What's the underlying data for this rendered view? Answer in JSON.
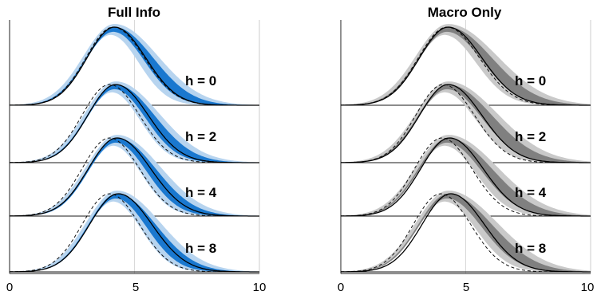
{
  "chart_data": [
    {
      "type": "area",
      "title": "Full Info",
      "xlim": [
        0,
        10
      ],
      "x_ticks": [
        "0",
        "5",
        "10"
      ],
      "grid": "vertical line at x = 5",
      "band_color": "#1a78cf",
      "band_outer_color": "#b7d4ef",
      "rows": [
        {
          "label": "h = 0",
          "band_mean": 4.2,
          "band_left_sd": 1.15,
          "band_right_sd": 1.55,
          "solid_mean": 4.2,
          "solid_left_sd": 1.1,
          "solid_right_sd": 1.25,
          "dashed_mean": 4.15,
          "dashed_left_sd": 1.1,
          "dashed_right_sd": 1.25
        },
        {
          "label": "h = 2",
          "band_mean": 4.25,
          "band_left_sd": 1.15,
          "band_right_sd": 1.55,
          "solid_mean": 4.25,
          "solid_left_sd": 1.12,
          "solid_right_sd": 1.3,
          "dashed_mean": 4.0,
          "dashed_left_sd": 1.1,
          "dashed_right_sd": 1.2
        },
        {
          "label": "h = 4",
          "band_mean": 4.3,
          "band_left_sd": 1.15,
          "band_right_sd": 1.55,
          "solid_mean": 4.3,
          "solid_left_sd": 1.15,
          "solid_right_sd": 1.35,
          "dashed_mean": 4.0,
          "dashed_left_sd": 1.1,
          "dashed_right_sd": 1.2
        },
        {
          "label": "h = 8",
          "band_mean": 4.3,
          "band_left_sd": 1.15,
          "band_right_sd": 1.55,
          "solid_mean": 4.35,
          "solid_left_sd": 1.15,
          "solid_right_sd": 1.35,
          "dashed_mean": 4.0,
          "dashed_left_sd": 1.1,
          "dashed_right_sd": 1.2
        }
      ]
    },
    {
      "type": "area",
      "title": "Macro Only",
      "xlim": [
        0,
        10
      ],
      "x_ticks": [
        "0",
        "5",
        "10"
      ],
      "grid": "vertical line at x = 5",
      "band_color": "#808080",
      "band_outer_color": "#c9c9c9",
      "rows": [
        {
          "label": "h = 0",
          "band_mean": 4.3,
          "band_left_sd": 1.2,
          "band_right_sd": 1.75,
          "solid_mean": 4.3,
          "solid_left_sd": 1.15,
          "solid_right_sd": 1.35,
          "dashed_mean": 4.25,
          "dashed_left_sd": 1.15,
          "dashed_right_sd": 1.3
        },
        {
          "label": "h = 2",
          "band_mean": 4.3,
          "band_left_sd": 1.2,
          "band_right_sd": 1.75,
          "solid_mean": 4.3,
          "solid_left_sd": 1.15,
          "solid_right_sd": 1.35,
          "dashed_mean": 4.1,
          "dashed_left_sd": 1.1,
          "dashed_right_sd": 1.25
        },
        {
          "label": "h = 4",
          "band_mean": 4.3,
          "band_left_sd": 1.2,
          "band_right_sd": 1.75,
          "solid_mean": 4.35,
          "solid_left_sd": 1.15,
          "solid_right_sd": 1.35,
          "dashed_mean": 4.05,
          "dashed_left_sd": 1.1,
          "dashed_right_sd": 1.2
        },
        {
          "label": "h = 8",
          "band_mean": 4.3,
          "band_left_sd": 1.2,
          "band_right_sd": 1.75,
          "solid_mean": 4.4,
          "solid_left_sd": 1.15,
          "solid_right_sd": 1.35,
          "dashed_mean": 4.0,
          "dashed_left_sd": 1.1,
          "dashed_right_sd": 1.2
        }
      ]
    }
  ]
}
